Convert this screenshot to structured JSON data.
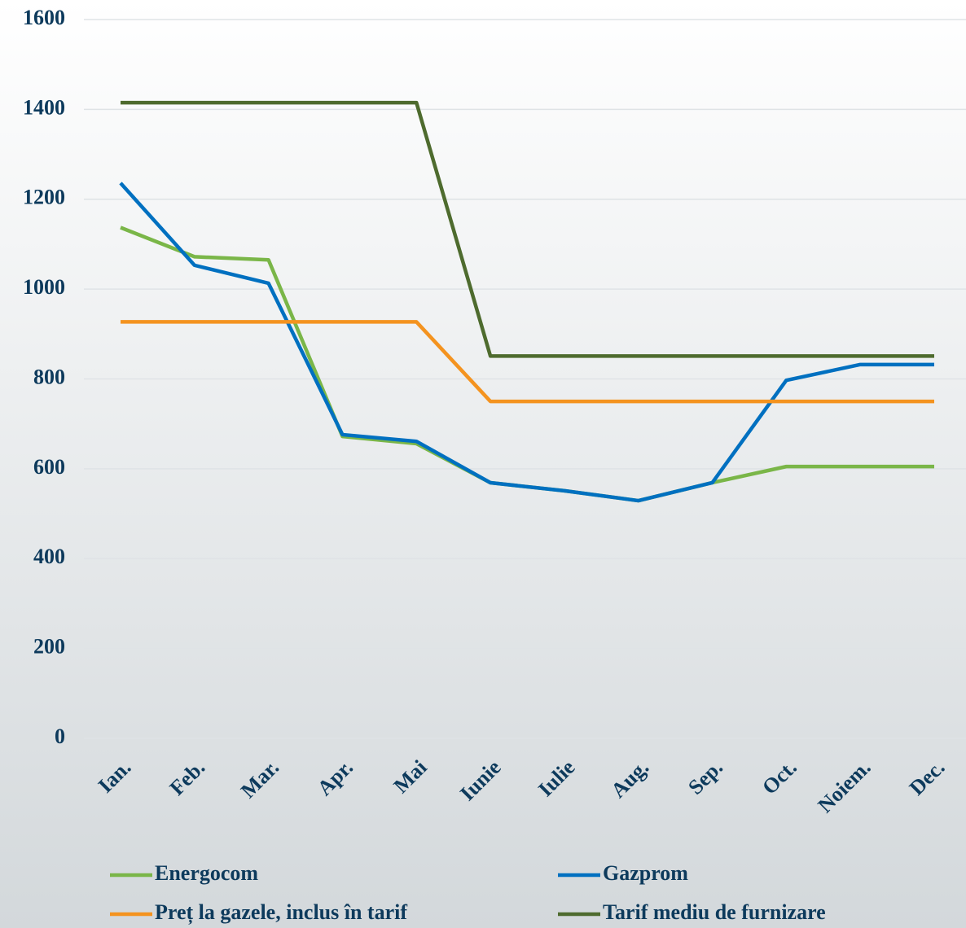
{
  "chart_data": {
    "type": "line",
    "categories": [
      "Ian.",
      "Feb.",
      "Mar.",
      "Apr.",
      "Mai",
      "Iunie",
      "Iulie",
      "Aug.",
      "Sep.",
      "Oct.",
      "Noiem.",
      "Dec."
    ],
    "series": [
      {
        "name": "Energocom",
        "color": "#7ab648",
        "values": [
          1137,
          1072,
          1065,
          672,
          656,
          569,
          551,
          529,
          569,
          605,
          605,
          605
        ]
      },
      {
        "name": "Gazprom",
        "color": "#0070c0",
        "values": [
          1236,
          1053,
          1013,
          676,
          661,
          569,
          551,
          529,
          569,
          797,
          832,
          832
        ]
      },
      {
        "name": "Preț la gazele, inclus în tarif",
        "color": "#f4931f",
        "values": [
          927,
          927,
          927,
          927,
          927,
          750,
          750,
          750,
          750,
          750,
          750,
          750
        ]
      },
      {
        "name": "Tarif mediu de furnizare",
        "color": "#4e6b2e",
        "values": [
          1415,
          1415,
          1415,
          1415,
          1415,
          851,
          851,
          851,
          851,
          851,
          851,
          851
        ]
      }
    ],
    "ylim": [
      0,
      1600
    ],
    "yticks": [
      0,
      200,
      400,
      600,
      800,
      1000,
      1200,
      1400,
      1600
    ],
    "grid": true
  }
}
